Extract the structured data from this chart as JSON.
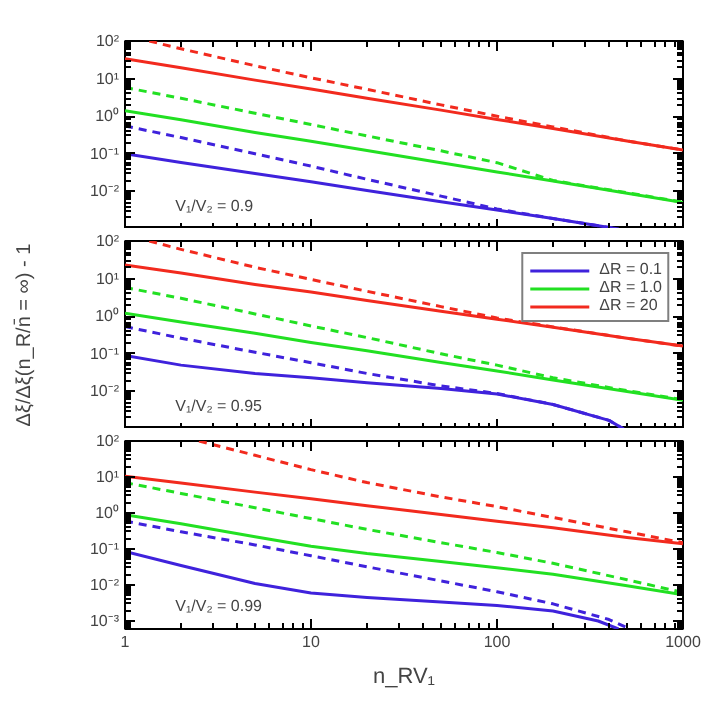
{
  "chart_data": [
    {
      "type": "line",
      "xlim": [
        1,
        1000
      ],
      "ylim": [
        0.001,
        100
      ],
      "log": "xy",
      "grid": false,
      "legend": false,
      "tick_labels": "y",
      "xticks": [
        1,
        10,
        100,
        1000
      ],
      "yticks": [
        {
          "value": 100,
          "label": "10²"
        },
        {
          "value": 10,
          "label": "10¹"
        },
        {
          "value": 1,
          "label": "10⁰"
        },
        {
          "value": 0.1,
          "label": "10⁻¹"
        },
        {
          "value": 0.01,
          "label": "10⁻²"
        }
      ],
      "x": [
        1,
        2,
        5,
        10,
        20,
        50,
        100,
        200,
        500,
        1000
      ],
      "annotations": [
        "V₁/V₂ = 0.9"
      ],
      "series": [
        {
          "color": "#3f22dc",
          "line_style": "solid",
          "x": [
            1,
            2,
            5,
            10,
            20,
            50,
            100,
            200,
            450
          ],
          "values": [
            0.1,
            0.059,
            0.03,
            0.018,
            0.0105,
            0.0053,
            0.0032,
            0.0019,
            0.001
          ]
        },
        {
          "color": "#22e022",
          "line_style": "solid",
          "values": [
            1.4,
            0.8,
            0.37,
            0.215,
            0.122,
            0.058,
            0.033,
            0.019,
            0.0089,
            0.0051
          ]
        },
        {
          "color": "#f22a1e",
          "line_style": "solid",
          "values": [
            34,
            19.4,
            9.1,
            5.3,
            3.0,
            1.45,
            0.82,
            0.47,
            0.22,
            0.126
          ]
        },
        {
          "color": "#3f22dc",
          "line_style": "dashed",
          "x": [
            1,
            2,
            5,
            10,
            20,
            50,
            100,
            200,
            450
          ],
          "values": [
            0.55,
            0.27,
            0.1,
            0.047,
            0.021,
            0.0075,
            0.0034,
            0.0019,
            0.001
          ]
        },
        {
          "color": "#22e022",
          "line_style": "dashed",
          "values": [
            5.8,
            3.0,
            1.2,
            0.6,
            0.3,
            0.12,
            0.058,
            0.0195,
            0.0092,
            0.0052
          ]
        },
        {
          "color": "#f22a1e",
          "line_style": "dashed",
          "x": [
            1.35,
            2,
            5,
            10,
            20,
            50,
            100,
            200,
            500,
            1000
          ],
          "values": [
            100,
            62,
            22,
            10.5,
            5.2,
            2.0,
            1.0,
            0.52,
            0.22,
            0.127
          ]
        }
      ]
    },
    {
      "type": "line",
      "xlim": [
        1,
        1000
      ],
      "ylim": [
        0.001,
        100
      ],
      "log": "xy",
      "grid": false,
      "legend": "top right",
      "tick_labels": "y",
      "xticks": [
        1,
        10,
        100,
        1000
      ],
      "yticks": [
        {
          "value": 100,
          "label": "10²"
        },
        {
          "value": 10,
          "label": "10¹"
        },
        {
          "value": 1,
          "label": "10⁰"
        },
        {
          "value": 0.1,
          "label": "10⁻¹"
        },
        {
          "value": 0.01,
          "label": "10⁻²"
        }
      ],
      "ylabel": "Δξ/Δξ(n_R/n̄ = ∞) - 1",
      "x": [
        1,
        2,
        5,
        10,
        20,
        50,
        100,
        200,
        500,
        1000
      ],
      "annotations": [
        "V₁/V₂ = 0.95"
      ],
      "series": [
        {
          "name": "ΔR = 0.1",
          "color": "#3f22dc",
          "line_style": "solid",
          "x": [
            1,
            2,
            5,
            10,
            20,
            50,
            100,
            200,
            400,
            480
          ],
          "values": [
            0.09,
            0.05,
            0.03,
            0.023,
            0.017,
            0.012,
            0.0085,
            0.0045,
            0.0017,
            0.001
          ]
        },
        {
          "name": "ΔR = 1.0",
          "color": "#22e022",
          "line_style": "solid",
          "values": [
            1.2,
            0.7,
            0.35,
            0.2,
            0.12,
            0.059,
            0.035,
            0.02,
            0.01,
            0.0058
          ]
        },
        {
          "name": "ΔR = 20",
          "color": "#f22a1e",
          "line_style": "solid",
          "values": [
            23,
            14,
            7.0,
            4.4,
            2.6,
            1.36,
            0.83,
            0.51,
            0.26,
            0.16
          ]
        },
        {
          "color": "#3f22dc",
          "line_style": "dashed",
          "x": [
            1,
            2,
            5,
            10,
            20,
            50,
            100,
            200,
            400,
            480
          ],
          "values": [
            0.53,
            0.26,
            0.11,
            0.058,
            0.03,
            0.014,
            0.0088,
            0.0045,
            0.0017,
            0.001
          ]
        },
        {
          "color": "#22e022",
          "line_style": "dashed",
          "values": [
            5.8,
            3.0,
            1.15,
            0.55,
            0.27,
            0.1,
            0.05,
            0.023,
            0.0105,
            0.006
          ]
        },
        {
          "color": "#f22a1e",
          "line_style": "dashed",
          "x": [
            1.35,
            2,
            5,
            10,
            20,
            50,
            100,
            200,
            500,
            1000
          ],
          "values": [
            100,
            60,
            20,
            9.5,
            4.6,
            1.8,
            0.9,
            0.52,
            0.26,
            0.16
          ]
        }
      ]
    },
    {
      "type": "line",
      "xlim": [
        1,
        1000
      ],
      "ylim": [
        0.0006,
        100
      ],
      "log": "xy",
      "grid": false,
      "legend": false,
      "xticks": [
        1,
        10,
        100,
        1000
      ],
      "yticks": [
        {
          "value": 100,
          "label": "10²"
        },
        {
          "value": 10,
          "label": "10¹"
        },
        {
          "value": 1,
          "label": "10⁰"
        },
        {
          "value": 0.1,
          "label": "10⁻¹"
        },
        {
          "value": 0.01,
          "label": "10⁻²"
        },
        {
          "value": 0.001,
          "label": "10⁻³"
        }
      ],
      "xlabel": "n_RV₁",
      "x": [
        1,
        2,
        5,
        10,
        20,
        50,
        100,
        200,
        500,
        1000
      ],
      "annotations": [
        "V₁/V₂ = 0.99"
      ],
      "series": [
        {
          "color": "#3f22dc",
          "line_style": "solid",
          "x": [
            1,
            2,
            5,
            10,
            20,
            50,
            100,
            200,
            350,
            450
          ],
          "values": [
            0.085,
            0.035,
            0.011,
            0.006,
            0.0045,
            0.0034,
            0.0027,
            0.0019,
            0.001,
            0.0006
          ]
        },
        {
          "color": "#22e022",
          "line_style": "solid",
          "values": [
            0.9,
            0.5,
            0.22,
            0.12,
            0.075,
            0.045,
            0.03,
            0.02,
            0.0095,
            0.0054
          ]
        },
        {
          "color": "#f22a1e",
          "line_style": "solid",
          "values": [
            10.5,
            6.8,
            3.8,
            2.5,
            1.6,
            0.91,
            0.59,
            0.39,
            0.21,
            0.14
          ]
        },
        {
          "color": "#3f22dc",
          "line_style": "dashed",
          "x": [
            1,
            2,
            5,
            10,
            20,
            50,
            100,
            200,
            400,
            520
          ],
          "values": [
            0.6,
            0.3,
            0.13,
            0.065,
            0.032,
            0.013,
            0.0065,
            0.003,
            0.0011,
            0.0006
          ]
        },
        {
          "color": "#22e022",
          "line_style": "dashed",
          "values": [
            7,
            3.5,
            1.4,
            0.7,
            0.35,
            0.15,
            0.08,
            0.04,
            0.014,
            0.0062
          ]
        },
        {
          "color": "#f22a1e",
          "line_style": "dashed",
          "x": [
            2.5,
            5,
            10,
            20,
            50,
            100,
            200,
            500,
            1000
          ],
          "values": [
            100,
            40,
            16,
            7,
            2.8,
            1.5,
            0.75,
            0.3,
            0.15
          ]
        }
      ]
    }
  ]
}
